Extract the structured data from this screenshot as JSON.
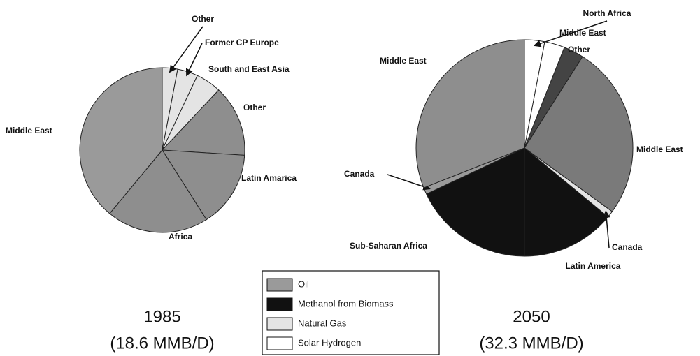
{
  "chart_data": [
    {
      "type": "pie",
      "caption": [
        "1985",
        "(18.6 MMB/D)"
      ],
      "categories": [
        "Other",
        "Former CP Europe",
        "South and East Asia",
        "Other",
        "Latin Amarica",
        "Africa",
        "Middle East"
      ],
      "values": [
        3,
        4,
        5,
        14,
        15,
        20,
        39
      ],
      "colors": [
        "#e4e4e4",
        "#e4e4e4",
        "#e4e4e4",
        "#8e8e8e",
        "#8e8e8e",
        "#8e8e8e",
        "#9a9a9a"
      ]
    },
    {
      "type": "pie",
      "caption": [
        "2050",
        "(32.3 MMB/D)"
      ],
      "categories": [
        "North Africa",
        "Middle East",
        "Other",
        "Middle East",
        "Canada",
        "Latin America",
        "Sub-Saharan Africa",
        "Canada",
        "Middle East"
      ],
      "values": [
        3,
        3,
        3,
        26,
        1,
        14,
        18,
        1,
        31
      ],
      "colors": [
        "#ffffff",
        "#ffffff",
        "#444444",
        "#7a7a7a",
        "#e4e4e4",
        "#111111",
        "#111111",
        "#9a9a9a",
        "#8e8e8e"
      ]
    }
  ],
  "legend": [
    {
      "name": "Oil",
      "color": "#9a9a9a"
    },
    {
      "name": "Methanol from Biomass",
      "color": "#111111"
    },
    {
      "name": "Natural Gas",
      "color": "#e4e4e4"
    },
    {
      "name": "Solar Hydrogen",
      "color": "#ffffff"
    }
  ]
}
